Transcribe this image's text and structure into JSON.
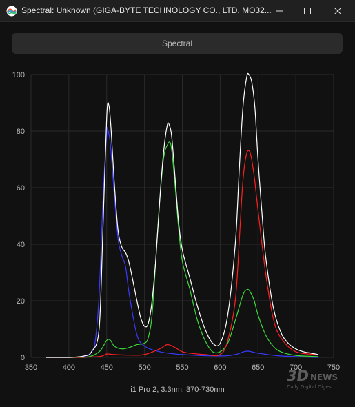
{
  "window": {
    "title": "Spectral: Unknown (GIGA-BYTE TECHNOLOGY CO., LTD. MO32...",
    "icons": {
      "app": "spectral-app-icon",
      "minimize": "minimize-icon",
      "maximize": "maximize-icon",
      "close": "close-icon"
    }
  },
  "tab": {
    "label": "Spectral"
  },
  "footer": {
    "label": "i1 Pro 2, 3.3nm, 370-730nm"
  },
  "watermark": {
    "brand": "3DNEWS",
    "tagline": "Daily Digital Digest"
  },
  "colors": {
    "white": "#ffffff",
    "red": "#ff2020",
    "green": "#3cd83c",
    "blue": "#3a3aff",
    "grid": "#2a2a2a"
  },
  "chart_data": {
    "type": "line",
    "title": "",
    "xlabel": "",
    "ylabel": "",
    "xlim": [
      350,
      750
    ],
    "ylim": [
      0,
      100
    ],
    "xticks": [
      350,
      400,
      450,
      500,
      550,
      600,
      650,
      700,
      750
    ],
    "yticks": [
      0,
      20,
      40,
      60,
      80,
      100
    ],
    "grid": true,
    "series": [
      {
        "color_key": "white",
        "x": [
          370,
          400,
          420,
          430,
          440,
          445,
          450,
          453,
          456,
          460,
          465,
          470,
          475,
          480,
          490,
          495,
          500,
          505,
          510,
          515,
          520,
          525,
          530,
          533,
          536,
          540,
          545,
          550,
          560,
          570,
          580,
          590,
          600,
          610,
          620,
          625,
          630,
          635,
          638,
          642,
          646,
          650,
          655,
          660,
          670,
          680,
          690,
          700,
          710,
          720,
          730
        ],
        "y": [
          0,
          0,
          0.5,
          2,
          10,
          45,
          85,
          89,
          80,
          62,
          45,
          39,
          37,
          33,
          20,
          14,
          11,
          12,
          20,
          35,
          55,
          72,
          82,
          82,
          78,
          65,
          48,
          38,
          28,
          18,
          10,
          5,
          5,
          15,
          40,
          65,
          88,
          99,
          100,
          97,
          88,
          70,
          52,
          36,
          18,
          9,
          5,
          3,
          2,
          1.5,
          1
        ]
      },
      {
        "color_key": "red",
        "x": [
          370,
          400,
          440,
          450,
          460,
          480,
          500,
          520,
          530,
          540,
          550,
          560,
          580,
          600,
          610,
          620,
          625,
          630,
          635,
          640,
          645,
          650,
          660,
          670,
          680,
          700,
          730
        ],
        "y": [
          0,
          0,
          0.3,
          1.2,
          1,
          0.8,
          1,
          3,
          4.5,
          3.5,
          2,
          1.5,
          1,
          1,
          6,
          20,
          40,
          62,
          72,
          72,
          64,
          52,
          30,
          14,
          7,
          2,
          1
        ]
      },
      {
        "color_key": "green",
        "x": [
          370,
          420,
          440,
          450,
          455,
          460,
          470,
          480,
          490,
          500,
          505,
          510,
          515,
          520,
          525,
          530,
          535,
          540,
          545,
          550,
          560,
          570,
          580,
          590,
          600,
          610,
          620,
          630,
          636,
          640,
          645,
          650,
          660,
          670,
          680,
          700,
          730
        ],
        "y": [
          0,
          0,
          2,
          6,
          6,
          4,
          3,
          3.5,
          4.5,
          5,
          7,
          15,
          35,
          55,
          70,
          75,
          75,
          62,
          46,
          34,
          24,
          13,
          6,
          2,
          2,
          5,
          13,
          22,
          24,
          23,
          20,
          15,
          8,
          4,
          2,
          0.7,
          0.3
        ]
      },
      {
        "color_key": "blue",
        "x": [
          370,
          400,
          420,
          430,
          435,
          440,
          445,
          450,
          452,
          455,
          460,
          465,
          470,
          475,
          480,
          490,
          500,
          520,
          550,
          600,
          620,
          635,
          650,
          680,
          730
        ],
        "y": [
          0,
          0,
          0.3,
          2,
          6,
          22,
          55,
          79,
          80,
          75,
          58,
          42,
          36,
          32,
          22,
          8,
          4,
          2,
          1,
          0.5,
          1,
          2.2,
          1.5,
          0.5,
          0
        ]
      }
    ]
  }
}
